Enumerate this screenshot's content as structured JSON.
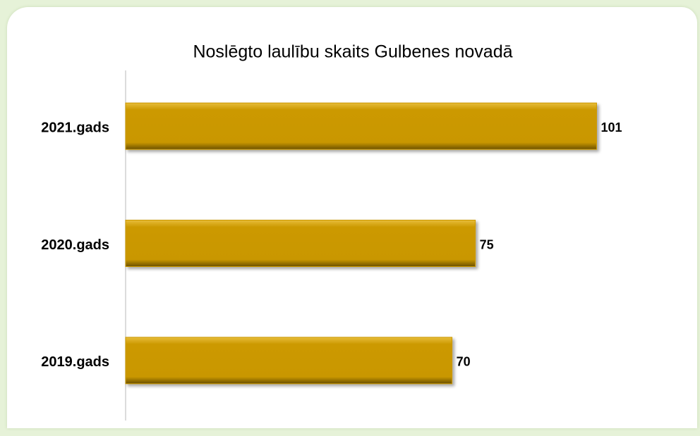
{
  "chart_data": {
    "type": "hbar",
    "title": "Noslēgto laulību skaits Gulbenes novadā",
    "categories": [
      "2021.gads",
      "2020.gads",
      "2019.gads"
    ],
    "values": [
      101,
      75,
      70
    ],
    "color": "#cc9900",
    "xlim": [
      0,
      120
    ]
  }
}
